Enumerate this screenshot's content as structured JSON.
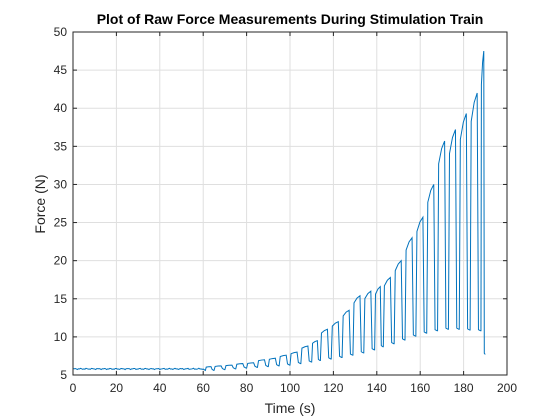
{
  "chart_data": {
    "type": "line",
    "title": "Plot of Raw Force Measurements During Stimulation Train",
    "xlabel": "Time (s)",
    "ylabel": "Force (N)",
    "xlim": [
      0,
      200
    ],
    "ylim": [
      5,
      50
    ],
    "xticks": [
      0,
      20,
      40,
      60,
      80,
      100,
      120,
      140,
      160,
      180,
      200
    ],
    "yticks": [
      5,
      10,
      15,
      20,
      25,
      30,
      35,
      40,
      45,
      50
    ],
    "grid": true,
    "line_color": "#0072BD",
    "baseline": {
      "x_start": 0,
      "x_end": 60,
      "y": 5.8
    },
    "pulses": [
      {
        "t": 61,
        "low": 5.6,
        "high": 6.1
      },
      {
        "t": 65,
        "low": 5.6,
        "high": 6.2
      },
      {
        "t": 70,
        "low": 5.7,
        "high": 6.3
      },
      {
        "t": 75,
        "low": 5.8,
        "high": 6.5
      },
      {
        "t": 80,
        "low": 5.9,
        "high": 6.6
      },
      {
        "t": 85,
        "low": 6.0,
        "high": 7.0
      },
      {
        "t": 90,
        "low": 6.1,
        "high": 7.2
      },
      {
        "t": 95,
        "low": 6.2,
        "high": 7.6
      },
      {
        "t": 100,
        "low": 6.3,
        "high": 8.0
      },
      {
        "t": 105,
        "low": 6.5,
        "high": 8.8
      },
      {
        "t": 110,
        "low": 6.7,
        "high": 9.5
      },
      {
        "t": 114,
        "low": 6.9,
        "high": 11.0
      },
      {
        "t": 119,
        "low": 7.1,
        "high": 12.0
      },
      {
        "t": 124,
        "low": 7.3,
        "high": 13.5
      },
      {
        "t": 129,
        "low": 7.6,
        "high": 15.4
      },
      {
        "t": 134,
        "low": 7.9,
        "high": 16.0
      },
      {
        "t": 139,
        "low": 8.3,
        "high": 16.6
      },
      {
        "t": 143,
        "low": 8.7,
        "high": 17.8
      },
      {
        "t": 148,
        "low": 9.1,
        "high": 20.0
      },
      {
        "t": 153,
        "low": 9.6,
        "high": 23.0
      },
      {
        "t": 158,
        "low": 10.1,
        "high": 25.7
      },
      {
        "t": 163,
        "low": 10.5,
        "high": 30.0
      },
      {
        "t": 168,
        "low": 10.8,
        "high": 35.7
      },
      {
        "t": 173,
        "low": 11.0,
        "high": 37.2
      },
      {
        "t": 178,
        "low": 11.0,
        "high": 39.3
      },
      {
        "t": 183,
        "low": 10.9,
        "high": 42.0
      },
      {
        "t": 188,
        "low": 10.8,
        "high": 47.5
      }
    ],
    "end_point": {
      "x": 190,
      "y": 7.7
    }
  }
}
